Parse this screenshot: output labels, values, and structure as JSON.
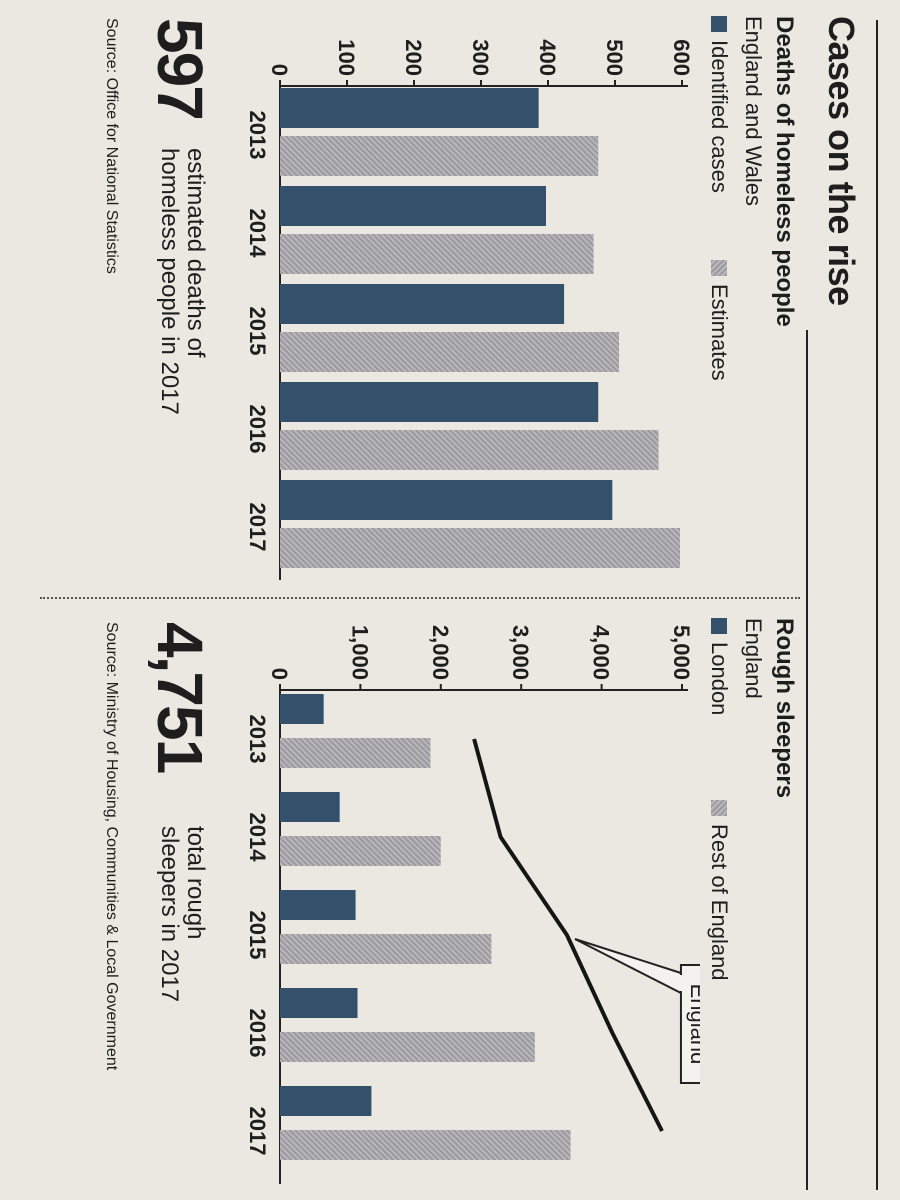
{
  "header": {
    "title": "Cases on the rise"
  },
  "left": {
    "title": "Deaths of homeless people",
    "subtitle": "England and Wales",
    "legend": [
      "Identified cases",
      "Estimates"
    ],
    "big_number": "597",
    "big_desc_1": "estimated deaths of",
    "big_desc_2": "homeless people in 2017",
    "source": "Source: Office for National Statistics"
  },
  "right": {
    "title": "Rough sleepers",
    "subtitle": "England",
    "legend": [
      "London",
      "Rest of England"
    ],
    "callout": "England",
    "big_number": "4,751",
    "big_desc_1": "total rough",
    "big_desc_2": "sleepers in 2017",
    "source": "Source: Ministry of Housing, Communities & Local Government"
  },
  "colors": {
    "dark": "#34506b",
    "light": "#a9a9ad",
    "line": "#151515"
  },
  "chart_data": [
    {
      "type": "bar",
      "title": "Deaths of homeless people",
      "subtitle": "England and Wales",
      "categories": [
        "2013",
        "2014",
        "2015",
        "2016",
        "2017"
      ],
      "series": [
        {
          "name": "Identified cases",
          "values": [
            386,
            397,
            424,
            475,
            496
          ]
        },
        {
          "name": "Estimates",
          "values": [
            475,
            468,
            506,
            565,
            597
          ]
        }
      ],
      "ylim": [
        0,
        600
      ],
      "yticks": [
        "0",
        "100",
        "200",
        "300",
        "400",
        "500",
        "600"
      ],
      "grid": false
    },
    {
      "type": "bar",
      "title": "Rough sleepers",
      "subtitle": "England",
      "categories": [
        "2013",
        "2014",
        "2015",
        "2016",
        "2017"
      ],
      "series": [
        {
          "name": "London",
          "values": [
            543,
            742,
            940,
            964,
            1137
          ]
        },
        {
          "name": "Rest of England",
          "values": [
            1871,
            1999,
            2629,
            3170,
            3614
          ]
        },
        {
          "name": "England",
          "type": "line",
          "values": [
            2414,
            2744,
            3569,
            4134,
            4751
          ]
        }
      ],
      "ylim": [
        0,
        5000
      ],
      "yticks": [
        "0",
        "1,000",
        "2,000",
        "3,000",
        "4,000",
        "5,000"
      ],
      "grid": false
    }
  ]
}
